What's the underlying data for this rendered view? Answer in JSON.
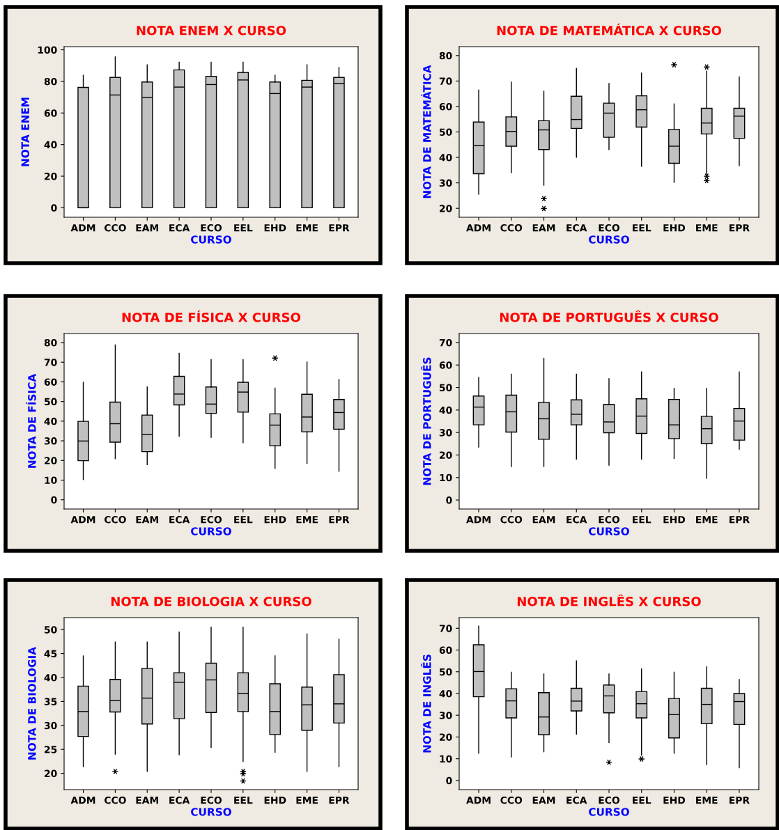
{
  "chart_data": [
    {
      "type": "box",
      "title": "NOTA ENEM X CURSO",
      "xlabel": "CURSO",
      "ylabel": "NOTA ENEM",
      "color": "#c0c0c0",
      "categories": [
        "ADM",
        "CCO",
        "EAM",
        "ECA",
        "ECO",
        "EEL",
        "EHD",
        "EME",
        "EPR"
      ],
      "ylim": [
        -6,
        102
      ],
      "yticks": [
        0,
        20,
        40,
        60,
        80,
        100
      ],
      "boxes": [
        {
          "low": 0,
          "q1": 0,
          "median": 0,
          "q3": 76.2,
          "high": 83.9
        },
        {
          "low": 0,
          "q1": 0,
          "median": 71.4,
          "q3": 82.5,
          "high": 95.5
        },
        {
          "low": 0,
          "q1": 0,
          "median": 69.9,
          "q3": 79.6,
          "high": 90.5
        },
        {
          "low": 0,
          "q1": 0,
          "median": 76.4,
          "q3": 87.3,
          "high": 92.1
        },
        {
          "low": 0,
          "q1": 0,
          "median": 78,
          "q3": 83.2,
          "high": 92.1
        },
        {
          "low": 0,
          "q1": 0,
          "median": 80.9,
          "q3": 85.7,
          "high": 92.1
        },
        {
          "low": 0,
          "q1": 0,
          "median": 72.3,
          "q3": 79.6,
          "high": 83.9
        },
        {
          "low": 0,
          "q1": 0,
          "median": 76.4,
          "q3": 80.7,
          "high": 90.5
        },
        {
          "low": 0,
          "q1": 0,
          "median": 78.7,
          "q3": 82.5,
          "high": 88.8
        }
      ]
    },
    {
      "type": "box",
      "title": "NOTA DE MATEMÁTICA X CURSO",
      "xlabel": "CURSO",
      "ylabel": "NOTA DE MATEMÁTICA",
      "color": "#c0c0c0",
      "categories": [
        "ADM",
        "CCO",
        "EAM",
        "ECA",
        "ECO",
        "EEL",
        "EHD",
        "EME",
        "EPR"
      ],
      "ylim": [
        16.5,
        83.5
      ],
      "yticks": [
        20,
        30,
        40,
        50,
        60,
        70,
        80
      ],
      "boxes": [
        {
          "low": 25.6,
          "q1": 33.6,
          "median": 44.7,
          "q3": 53.9,
          "high": 66.4
        },
        {
          "low": 34.0,
          "q1": 44.4,
          "median": 50.2,
          "q3": 55.9,
          "high": 69.6
        },
        {
          "low": 29.1,
          "q1": 43.1,
          "median": 50.8,
          "q3": 54.4,
          "high": 66,
          "outliers": [
            23.8,
            19.9
          ]
        },
        {
          "low": 40.1,
          "q1": 51.4,
          "median": 54.9,
          "q3": 64,
          "high": 75
        },
        {
          "low": 43.1,
          "q1": 47.9,
          "median": 57.4,
          "q3": 61.3,
          "high": 69
        },
        {
          "low": 36.5,
          "q1": 51.9,
          "median": 58.7,
          "q3": 64.2,
          "high": 73.1
        },
        {
          "low": 30.2,
          "q1": 37.7,
          "median": 44.4,
          "q3": 51,
          "high": 61,
          "outliers": [
            76.4
          ]
        },
        {
          "low": 33.3,
          "q1": 49.2,
          "median": 53.5,
          "q3": 59.3,
          "high": 73.9,
          "outliers": [
            75.5,
            32.6,
            30.9
          ]
        },
        {
          "low": 36.7,
          "q1": 47.5,
          "median": 56.2,
          "q3": 59.3,
          "high": 71.6
        }
      ]
    },
    {
      "type": "box",
      "title": "NOTA DE FÍSICA X CURSO",
      "xlabel": "CURSO",
      "ylabel": "NOTA DE FÍSICA",
      "color": "#c0c0c0",
      "categories": [
        "ADM",
        "CCO",
        "EAM",
        "ECA",
        "ECO",
        "EEL",
        "EHD",
        "EME",
        "EPR"
      ],
      "ylim": [
        -4.7,
        84.6
      ],
      "yticks": [
        0,
        10,
        20,
        30,
        40,
        50,
        60,
        70,
        80
      ],
      "boxes": [
        {
          "low": 10.3,
          "q1": 19.9,
          "median": 29.9,
          "q3": 39.9,
          "high": 59.8
        },
        {
          "low": 20.9,
          "q1": 29.3,
          "median": 38.7,
          "q3": 49.7,
          "high": 78.8
        },
        {
          "low": 17.9,
          "q1": 24.5,
          "median": 33.3,
          "q3": 43.1,
          "high": 57.4
        },
        {
          "low": 32.3,
          "q1": 48.3,
          "median": 53.8,
          "q3": 62.8,
          "high": 74.5
        },
        {
          "low": 31.8,
          "q1": 44,
          "median": 48.7,
          "q3": 57.4,
          "high": 71.3
        },
        {
          "low": 29,
          "q1": 44.6,
          "median": 54.8,
          "q3": 59.8,
          "high": 71.3
        },
        {
          "low": 16,
          "q1": 27.5,
          "median": 38,
          "q3": 43.7,
          "high": 56.8,
          "outliers": [
            72.1
          ]
        },
        {
          "low": 18.5,
          "q1": 34.6,
          "median": 42.1,
          "q3": 53.7,
          "high": 70.1
        },
        {
          "low": 14.5,
          "q1": 35.9,
          "median": 44.4,
          "q3": 51,
          "high": 61.2
        }
      ]
    },
    {
      "type": "box",
      "title": "NOTA DE PORTUGUÊS X CURSO",
      "xlabel": "CURSO",
      "ylabel": "NOTA DE PORTUGUÊS",
      "color": "#c0c0c0",
      "categories": [
        "ADM",
        "CCO",
        "EAM",
        "ECA",
        "ECO",
        "EEL",
        "EHD",
        "EME",
        "EPR"
      ],
      "ylim": [
        -4,
        74
      ],
      "yticks": [
        0,
        10,
        20,
        30,
        40,
        50,
        60,
        70
      ],
      "boxes": [
        {
          "low": 23.5,
          "q1": 33.4,
          "median": 41.3,
          "q3": 46.2,
          "high": 54.5
        },
        {
          "low": 14.9,
          "q1": 30.2,
          "median": 39.2,
          "q3": 46.6,
          "high": 55.9
        },
        {
          "low": 14.9,
          "q1": 27,
          "median": 36.1,
          "q3": 43.4,
          "high": 63
        },
        {
          "low": 18.2,
          "q1": 33.4,
          "median": 38.1,
          "q3": 44.5,
          "high": 55.9
        },
        {
          "low": 15.5,
          "q1": 29.9,
          "median": 34.7,
          "q3": 42.5,
          "high": 53.9
        },
        {
          "low": 18.2,
          "q1": 29.6,
          "median": 37.3,
          "q3": 45,
          "high": 56.9
        },
        {
          "low": 18.5,
          "q1": 27.3,
          "median": 33.4,
          "q3": 44.7,
          "high": 49.6
        },
        {
          "low": 9.7,
          "q1": 25,
          "median": 31.7,
          "q3": 37.2,
          "high": 49.6
        },
        {
          "low": 22.6,
          "q1": 26.6,
          "median": 35.1,
          "q3": 40.7,
          "high": 56.9
        }
      ]
    },
    {
      "type": "box",
      "title": "NOTA DE BIOLOGIA X CURSO",
      "xlabel": "CURSO",
      "ylabel": "NOTA DE BIOLOGIA",
      "color": "#c0c0c0",
      "categories": [
        "ADM",
        "CCO",
        "EAM",
        "ECA",
        "ECO",
        "EEL",
        "EHD",
        "EME",
        "EPR"
      ],
      "ylim": [
        16.6,
        52.5
      ],
      "yticks": [
        20,
        25,
        30,
        35,
        40,
        45,
        50
      ],
      "boxes": [
        {
          "low": 21.4,
          "q1": 27.7,
          "median": 32.9,
          "q3": 38.2,
          "high": 44.5
        },
        {
          "low": 24,
          "q1": 32.8,
          "median": 35.2,
          "q3": 39.6,
          "high": 47.4,
          "outliers": [
            20.4
          ]
        },
        {
          "low": 20.4,
          "q1": 30.3,
          "median": 35.7,
          "q3": 41.9,
          "high": 47.4
        },
        {
          "low": 23.9,
          "q1": 31.4,
          "median": 39,
          "q3": 41,
          "high": 49.5
        },
        {
          "low": 25.4,
          "q1": 32.7,
          "median": 39.5,
          "q3": 43,
          "high": 50.5
        },
        {
          "low": 22.5,
          "q1": 32.9,
          "median": 36.7,
          "q3": 41,
          "high": 50.5,
          "outliers": [
            20.4,
            19.9,
            18.4
          ]
        },
        {
          "low": 24.4,
          "q1": 28.1,
          "median": 32.9,
          "q3": 38.7,
          "high": 44.5
        },
        {
          "low": 20.4,
          "q1": 29,
          "median": 34.3,
          "q3": 38,
          "high": 49.1
        },
        {
          "low": 21.4,
          "q1": 30.5,
          "median": 34.5,
          "q3": 40.6,
          "high": 48
        }
      ]
    },
    {
      "type": "box",
      "title": "NOTA DE INGLÊS X CURSO",
      "xlabel": "CURSO",
      "ylabel": "NOTA DE INGLÊS",
      "color": "#c0c0c0",
      "categories": [
        "ADM",
        "CCO",
        "EAM",
        "ECA",
        "ECO",
        "EEL",
        "EHD",
        "EME",
        "EPR"
      ],
      "ylim": [
        -4.2,
        74.9
      ],
      "yticks": [
        0,
        10,
        20,
        30,
        40,
        50,
        60,
        70
      ],
      "boxes": [
        {
          "low": 12.5,
          "q1": 38.5,
          "median": 50.1,
          "q3": 62.4,
          "high": 71
        },
        {
          "low": 10.8,
          "q1": 28.8,
          "median": 36.6,
          "q3": 42.2,
          "high": 49.8
        },
        {
          "low": 13.2,
          "q1": 21,
          "median": 29.2,
          "q3": 40.4,
          "high": 49
        },
        {
          "low": 21.3,
          "q1": 32,
          "median": 36.5,
          "q3": 42.4,
          "high": 55
        },
        {
          "low": 17.5,
          "q1": 31.1,
          "median": 38.9,
          "q3": 43.9,
          "high": 49,
          "outliers": [
            8.4
          ]
        },
        {
          "low": 11.6,
          "q1": 28.8,
          "median": 35.3,
          "q3": 40.9,
          "high": 51.3,
          "outliers": [
            9.9
          ]
        },
        {
          "low": 12.5,
          "q1": 19.6,
          "median": 30.3,
          "q3": 37.7,
          "high": 49.8
        },
        {
          "low": 7.3,
          "q1": 26.1,
          "median": 35,
          "q3": 42.4,
          "high": 52.3
        },
        {
          "low": 5.9,
          "q1": 25.8,
          "median": 36.3,
          "q3": 40,
          "high": 46.4
        }
      ]
    }
  ]
}
